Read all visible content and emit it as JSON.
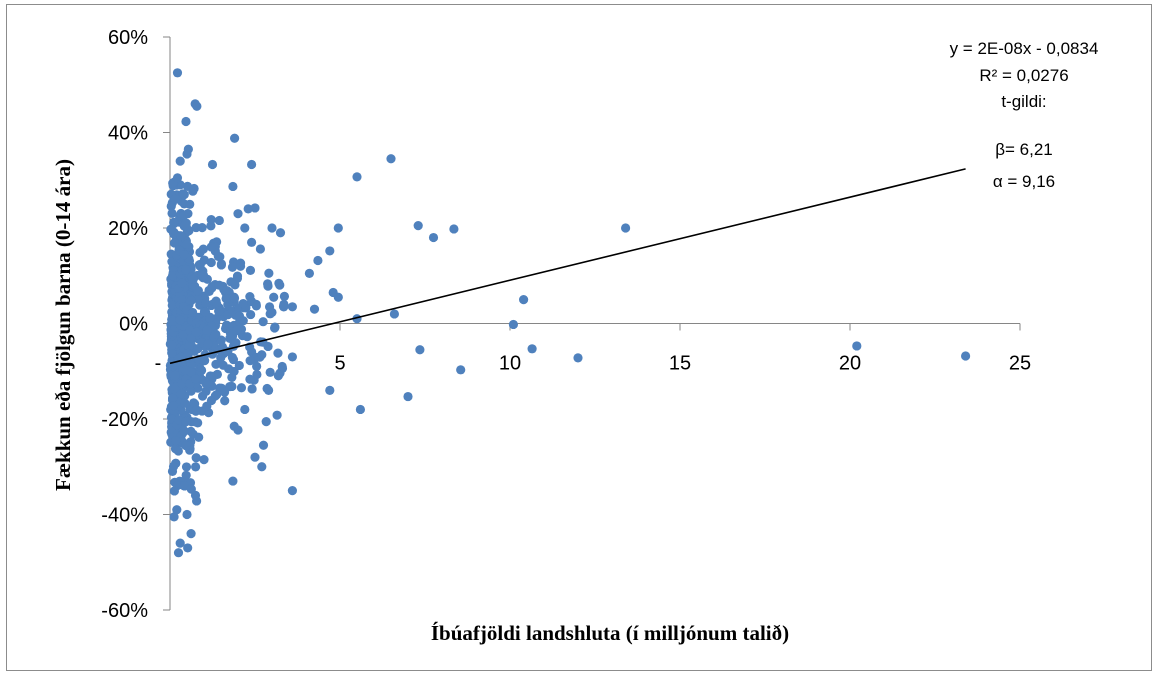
{
  "chart_data": {
    "type": "scatter",
    "title": "",
    "xlabel": "Íbúafjöldi landshluta (í milljónum talið)",
    "ylabel": "Fækkun eða fjölgun barna (0-14 ára)",
    "xlim": [
      0,
      25
    ],
    "ylim": [
      -0.6,
      0.6
    ],
    "x_ticks": [
      "-",
      "5",
      "10",
      "15",
      "20",
      "25"
    ],
    "x_tick_values": [
      0,
      5,
      10,
      15,
      20,
      25
    ],
    "y_ticks": [
      "60%",
      "40%",
      "20%",
      "0%",
      "-20%",
      "-40%",
      "-60%"
    ],
    "y_tick_values": [
      0.6,
      0.4,
      0.2,
      0,
      -0.2,
      -0.4,
      -0.6
    ],
    "grid": false,
    "legend": "none",
    "marker_color": "#4f81bd",
    "trendline": {
      "color": "#000000",
      "slope_per_million": 0.0174,
      "intercept": -0.0834,
      "x_range": [
        0,
        23.4
      ]
    },
    "annotation": [
      "y = 2E-08x - 0,0834",
      "R² = 0,0276",
      "t-gildi:",
      "β= 6,21",
      "α = 9,16"
    ],
    "series": [
      {
        "outliers": [
          [
            0.22,
            0.525
          ],
          [
            0.74,
            0.46
          ],
          [
            0.79,
            0.455
          ],
          [
            0.47,
            0.423
          ],
          [
            0.54,
            0.365
          ],
          [
            0.5,
            0.355
          ],
          [
            1.9,
            0.388
          ],
          [
            1.25,
            0.333
          ],
          [
            0.3,
            0.34
          ],
          [
            0.22,
            0.305
          ],
          [
            0.42,
            0.27
          ],
          [
            0.15,
            0.26
          ],
          [
            2.4,
            0.333
          ],
          [
            1.85,
            0.287
          ],
          [
            2.5,
            0.242
          ],
          [
            2.3,
            0.24
          ],
          [
            2.0,
            0.23
          ],
          [
            2.2,
            0.2
          ],
          [
            3.0,
            0.2
          ],
          [
            3.25,
            0.19
          ],
          [
            2.4,
            0.17
          ],
          [
            6.5,
            0.345
          ],
          [
            5.5,
            0.307
          ],
          [
            4.35,
            0.132
          ],
          [
            4.7,
            0.152
          ],
          [
            4.1,
            0.105
          ],
          [
            4.95,
            0.2
          ],
          [
            4.8,
            0.065
          ],
          [
            4.95,
            0.055
          ],
          [
            3.05,
            0.055
          ],
          [
            3.35,
            0.04
          ],
          [
            3.6,
            0.035
          ],
          [
            4.25,
            0.03
          ],
          [
            5.5,
            0.01
          ],
          [
            6.6,
            0.02
          ],
          [
            7.3,
            0.205
          ],
          [
            7.75,
            0.18
          ],
          [
            8.35,
            0.198
          ],
          [
            13.4,
            0.2
          ],
          [
            10.4,
            0.05
          ],
          [
            10.1,
            -0.002
          ],
          [
            10.65,
            -0.053
          ],
          [
            12.0,
            -0.072
          ],
          [
            20.2,
            -0.047
          ],
          [
            23.4,
            -0.068
          ],
          [
            7.35,
            -0.055
          ],
          [
            8.55,
            -0.097
          ],
          [
            7.0,
            -0.153
          ],
          [
            5.6,
            -0.18
          ],
          [
            4.7,
            -0.14
          ],
          [
            3.6,
            -0.35
          ],
          [
            3.15,
            -0.192
          ],
          [
            3.6,
            -0.07
          ],
          [
            3.3,
            -0.09
          ],
          [
            2.9,
            -0.14
          ],
          [
            2.75,
            -0.255
          ],
          [
            2.7,
            -0.3
          ],
          [
            2.5,
            -0.28
          ],
          [
            2.0,
            -0.223
          ],
          [
            1.85,
            -0.33
          ],
          [
            2.2,
            -0.18
          ],
          [
            1.0,
            -0.285
          ],
          [
            0.75,
            -0.36
          ],
          [
            0.62,
            -0.44
          ],
          [
            0.52,
            -0.47
          ],
          [
            0.3,
            -0.46
          ],
          [
            0.25,
            -0.48
          ],
          [
            0.12,
            -0.405
          ],
          [
            0.2,
            -0.39
          ],
          [
            0.5,
            -0.4
          ]
        ]
      }
    ]
  }
}
